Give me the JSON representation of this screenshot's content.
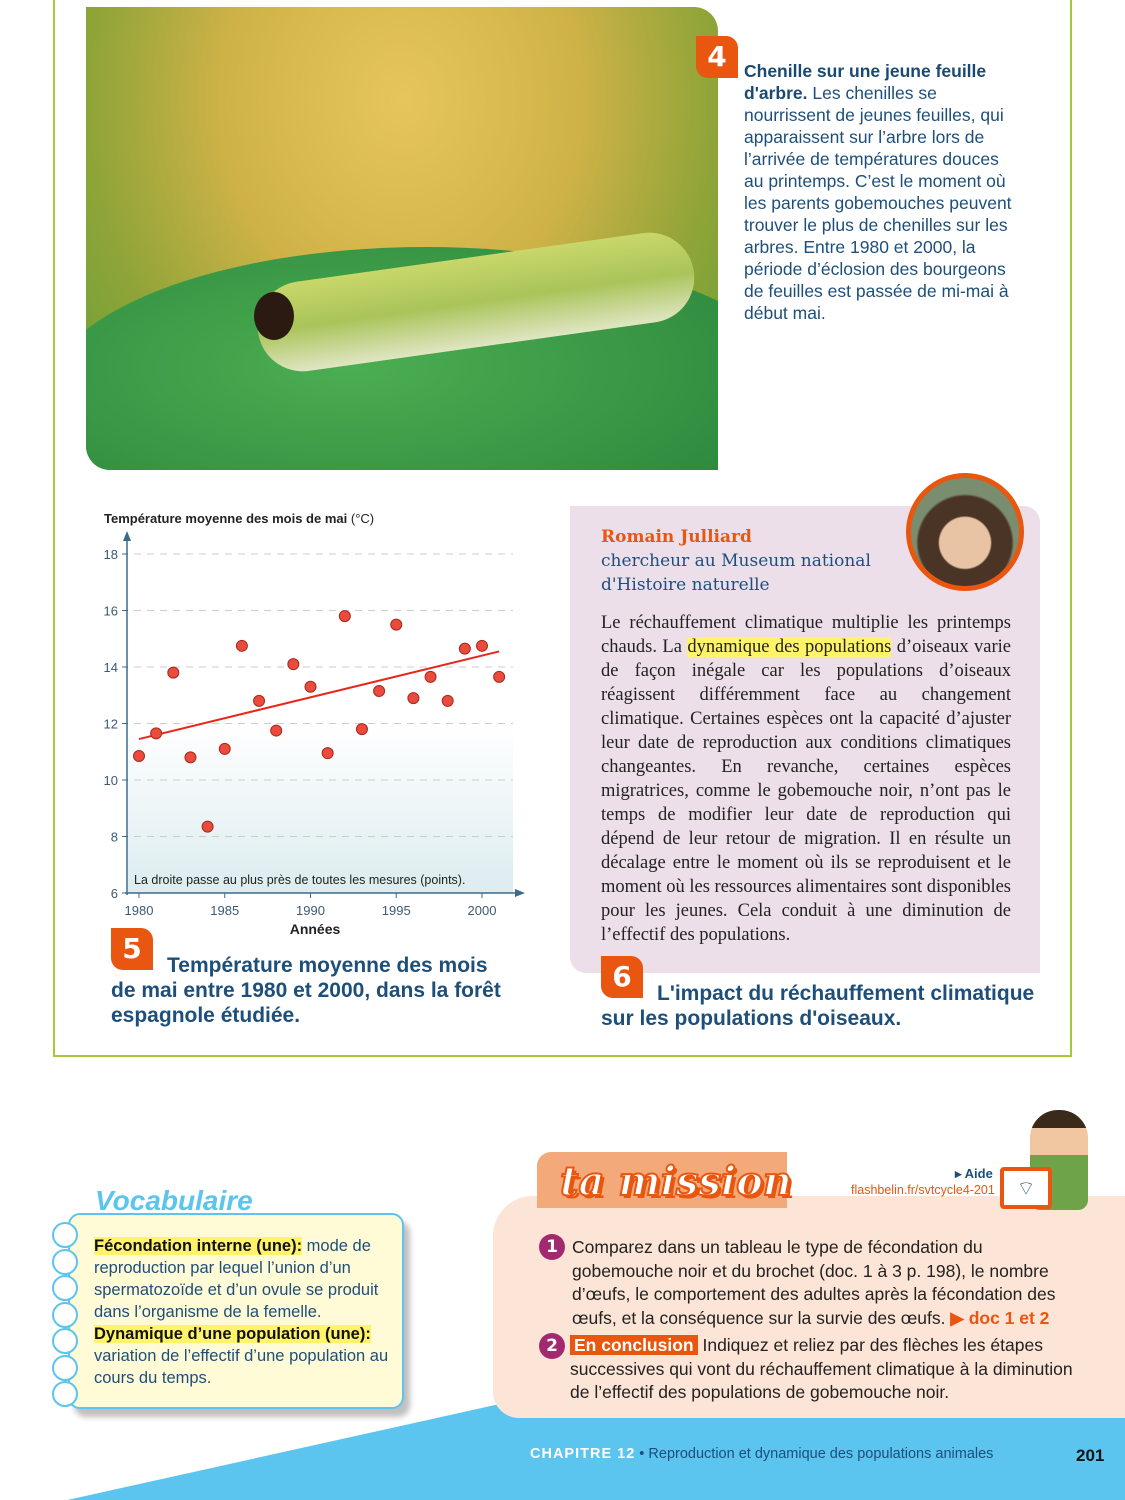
{
  "doc4": {
    "number": "4",
    "title": "Chenille sur une jeune feuille d'arbre.",
    "text": " Les chenilles se nourrissent de jeunes feuilles, qui apparaissent sur l’arbre lors de l’arrivée de températures douces au printemps. C’est le moment où les parents gobemouches peuvent trouver le plus de chenilles sur les arbres. Entre 1980 et 2000, la période d’éclosion des bourgeons de feuilles est passée de mi-mai à début mai."
  },
  "doc5": {
    "number": "5",
    "caption": "Température moyenne des mois de mai entre 1980 et 2000, dans la forêt espagnole étudiée."
  },
  "chart_data": {
    "type": "scatter",
    "title": "Température moyenne des mois de mai",
    "title_unit": "(°C)",
    "xlabel": "Années",
    "ylabel": "",
    "xlim": [
      1980,
      2002
    ],
    "ylim": [
      6,
      18
    ],
    "xticks": [
      1980,
      1985,
      1990,
      1995,
      2000
    ],
    "yticks": [
      6,
      8,
      10,
      12,
      14,
      16,
      18
    ],
    "grid": "horizontal dashed",
    "annotation": "La droite passe au plus près de toutes les mesures (points).",
    "x": [
      1980,
      1981,
      1982,
      1983,
      1984,
      1985,
      1986,
      1987,
      1988,
      1989,
      1990,
      1991,
      1992,
      1993,
      1994,
      1995,
      1996,
      1997,
      1998,
      1999,
      2000,
      2001
    ],
    "y": [
      10.85,
      11.65,
      13.8,
      10.8,
      8.35,
      11.1,
      14.75,
      12.8,
      11.75,
      14.1,
      13.3,
      10.95,
      15.8,
      11.8,
      13.15,
      15.5,
      12.9,
      13.65,
      12.8,
      14.65,
      14.75,
      13.65
    ],
    "trendline": {
      "x": [
        1980,
        2001
      ],
      "y": [
        11.45,
        14.55
      ]
    },
    "colors": {
      "points": "#e94b3c",
      "trendline": "#e8261b",
      "axis": "#3c6b8a"
    }
  },
  "doc6": {
    "number": "6",
    "name": "Romain Julliard",
    "role_line1": "chercheur au Museum national",
    "role_line2": "d'Histoire naturelle",
    "text_before": "Le réchauffement climatique multiplie les printemps chauds. La ",
    "highlight": "dynamique des populations",
    "text_after": " d’oiseaux varie de façon inégale car les populations d’oiseaux réagissent différemment face au changement climatique. Certaines espèces ont la capacité d’ajuster leur date de reproduction aux conditions climatiques changeantes. En revanche, certaines espèces migratrices, comme le gobemouche noir, n’ont pas le temps de modifier leur date de reproduction qui dépend de leur retour de migration. Il en résulte un décalage entre le moment où ils se reproduisent et le moment où les ressources alimentaires sont disponibles pour les jeunes. Cela conduit à une diminution de l’effectif des populations.",
    "caption": "L'impact du réchauffement climatique sur les populations d'oiseaux."
  },
  "vocab": {
    "title": "Vocabulaire",
    "term1": "Fécondation interne (une):",
    "def1": " mode de reproduction par lequel l’union d’un spermatozoïde et d’un ovule se produit dans l’organisme de la femelle.",
    "term2": "Dynamique d’une population (une):",
    "def2": " variation de l’effectif d’une population au cours du temps."
  },
  "mission": {
    "title": "ta mission",
    "aide": "▸ Aide",
    "link": "flashbelin.fr/svtcycle4-201",
    "q1_num": "1",
    "q1": "Comparez dans un tableau le type de fécondation du gobemouche noir et du brochet (doc. 1 à 3 p. 198), le nombre d’œufs, le comportement des adultes après la fécondation des œufs, et la conséquence sur la survie des œufs. ",
    "q1_ref": "▶ doc 1 et 2",
    "q2_num": "2",
    "q2_label": "En conclusion",
    "q2": " Indiquez et reliez par des flèches les étapes successives qui vont du réchauffement climatique à la diminution de l’effectif des populations de gobemouche noir."
  },
  "footer": {
    "chapter": "CHAPITRE 12",
    "sep": " • ",
    "title": "Reproduction et dynamique des populations animales",
    "page": "201"
  }
}
